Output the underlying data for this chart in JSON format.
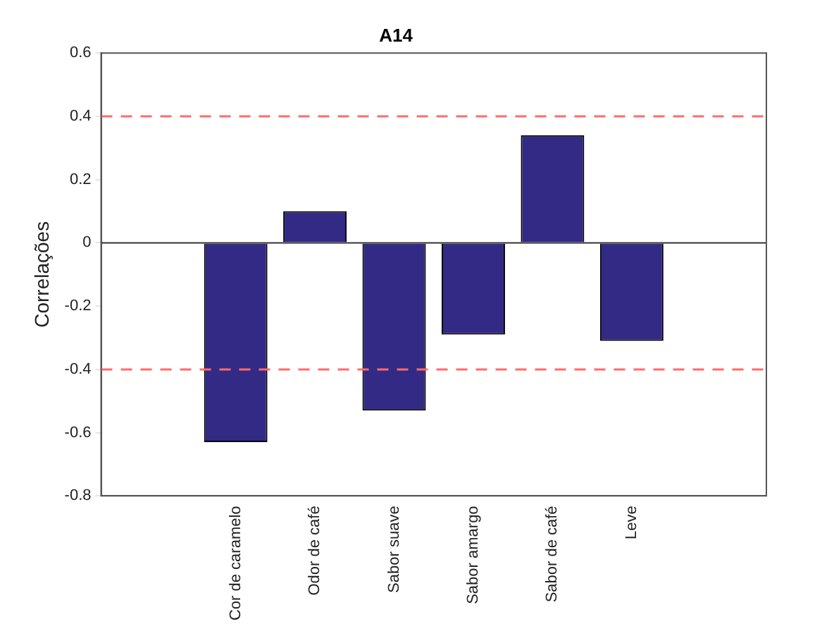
{
  "chart_data": {
    "type": "bar",
    "title": "A14",
    "ylabel": "Correlações",
    "categories": [
      "Cor de caramelo",
      "Odor de café",
      "Sabor suave",
      "Sabor amargo",
      "Sabor de café",
      "Leve"
    ],
    "values": [
      -0.63,
      0.1,
      -0.53,
      -0.29,
      0.34,
      -0.31
    ],
    "color": "#332a85",
    "ylim": [
      -0.8,
      0.6
    ],
    "yticks": [
      -0.8,
      -0.6,
      -0.4,
      -0.2,
      0,
      0.2,
      0.4,
      0.6
    ],
    "grid": false,
    "legend": false,
    "ref_lines": [
      {
        "axis": "y",
        "value": 0.4,
        "color": "#ff6b6b",
        "line_style": "dashed"
      },
      {
        "axis": "y",
        "value": -0.4,
        "color": "#ff6b6b",
        "line_style": "dashed"
      }
    ]
  }
}
